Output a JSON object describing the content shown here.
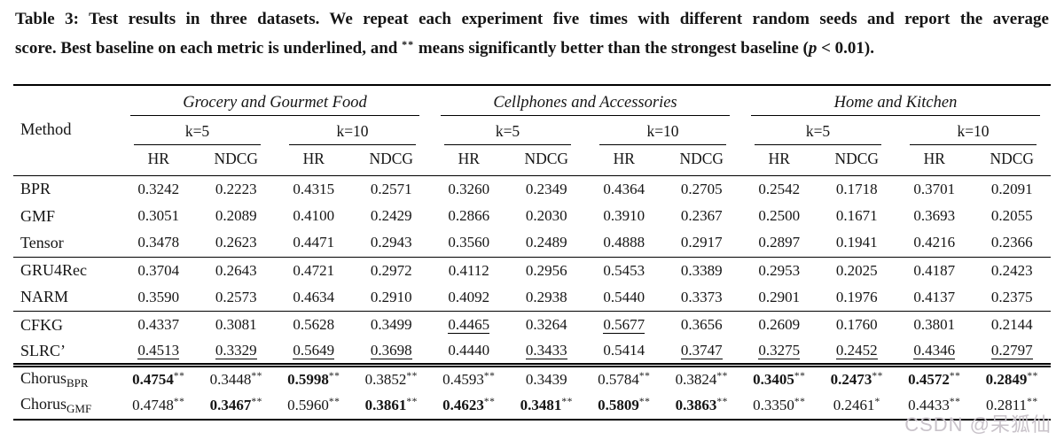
{
  "caption": {
    "line1": "Table 3: Test results in three datasets. We repeat each experiment five times with different random seeds and report the average",
    "line2_prefix": "score. Best baseline on each metric is underlined, and ",
    "stars": "**",
    "line2_mid": " means significantly better than the strongest baseline (",
    "p_var": "p",
    "line2_suffix": " < 0.01)."
  },
  "table": {
    "method_header": "Method",
    "metric_labels": [
      "HR",
      "NDCG"
    ],
    "groups": [
      {
        "name": "Grocery and Gourmet Food",
        "ks": [
          "k=5",
          "k=10"
        ]
      },
      {
        "name": "Cellphones and Accessories",
        "ks": [
          "k=5",
          "k=10"
        ]
      },
      {
        "name": "Home and Kitchen",
        "ks": [
          "k=5",
          "k=10"
        ]
      }
    ],
    "row_groups": [
      {
        "rows": [
          {
            "method": {
              "name": "BPR",
              "sub": ""
            },
            "cells": [
              {
                "v": "0.3242",
                "f": "",
                "s": ""
              },
              {
                "v": "0.2223",
                "f": "",
                "s": ""
              },
              {
                "v": "0.4315",
                "f": "",
                "s": ""
              },
              {
                "v": "0.2571",
                "f": "",
                "s": ""
              },
              {
                "v": "0.3260",
                "f": "",
                "s": ""
              },
              {
                "v": "0.2349",
                "f": "",
                "s": ""
              },
              {
                "v": "0.4364",
                "f": "",
                "s": ""
              },
              {
                "v": "0.2705",
                "f": "",
                "s": ""
              },
              {
                "v": "0.2542",
                "f": "",
                "s": ""
              },
              {
                "v": "0.1718",
                "f": "",
                "s": ""
              },
              {
                "v": "0.3701",
                "f": "",
                "s": ""
              },
              {
                "v": "0.2091",
                "f": "",
                "s": ""
              }
            ]
          },
          {
            "method": {
              "name": "GMF",
              "sub": ""
            },
            "cells": [
              {
                "v": "0.3051",
                "f": "",
                "s": ""
              },
              {
                "v": "0.2089",
                "f": "",
                "s": ""
              },
              {
                "v": "0.4100",
                "f": "",
                "s": ""
              },
              {
                "v": "0.2429",
                "f": "",
                "s": ""
              },
              {
                "v": "0.2866",
                "f": "",
                "s": ""
              },
              {
                "v": "0.2030",
                "f": "",
                "s": ""
              },
              {
                "v": "0.3910",
                "f": "",
                "s": ""
              },
              {
                "v": "0.2367",
                "f": "",
                "s": ""
              },
              {
                "v": "0.2500",
                "f": "",
                "s": ""
              },
              {
                "v": "0.1671",
                "f": "",
                "s": ""
              },
              {
                "v": "0.3693",
                "f": "",
                "s": ""
              },
              {
                "v": "0.2055",
                "f": "",
                "s": ""
              }
            ]
          },
          {
            "method": {
              "name": "Tensor",
              "sub": ""
            },
            "cells": [
              {
                "v": "0.3478",
                "f": "",
                "s": ""
              },
              {
                "v": "0.2623",
                "f": "",
                "s": ""
              },
              {
                "v": "0.4471",
                "f": "",
                "s": ""
              },
              {
                "v": "0.2943",
                "f": "",
                "s": ""
              },
              {
                "v": "0.3560",
                "f": "",
                "s": ""
              },
              {
                "v": "0.2489",
                "f": "",
                "s": ""
              },
              {
                "v": "0.4888",
                "f": "",
                "s": ""
              },
              {
                "v": "0.2917",
                "f": "",
                "s": ""
              },
              {
                "v": "0.2897",
                "f": "",
                "s": ""
              },
              {
                "v": "0.1941",
                "f": "",
                "s": ""
              },
              {
                "v": "0.4216",
                "f": "",
                "s": ""
              },
              {
                "v": "0.2366",
                "f": "",
                "s": ""
              }
            ]
          }
        ]
      },
      {
        "rows": [
          {
            "method": {
              "name": "GRU4Rec",
              "sub": ""
            },
            "cells": [
              {
                "v": "0.3704",
                "f": "",
                "s": ""
              },
              {
                "v": "0.2643",
                "f": "",
                "s": ""
              },
              {
                "v": "0.4721",
                "f": "",
                "s": ""
              },
              {
                "v": "0.2972",
                "f": "",
                "s": ""
              },
              {
                "v": "0.4112",
                "f": "",
                "s": ""
              },
              {
                "v": "0.2956",
                "f": "",
                "s": ""
              },
              {
                "v": "0.5453",
                "f": "",
                "s": ""
              },
              {
                "v": "0.3389",
                "f": "",
                "s": ""
              },
              {
                "v": "0.2953",
                "f": "",
                "s": ""
              },
              {
                "v": "0.2025",
                "f": "",
                "s": ""
              },
              {
                "v": "0.4187",
                "f": "",
                "s": ""
              },
              {
                "v": "0.2423",
                "f": "",
                "s": ""
              }
            ]
          },
          {
            "method": {
              "name": "NARM",
              "sub": ""
            },
            "cells": [
              {
                "v": "0.3590",
                "f": "",
                "s": ""
              },
              {
                "v": "0.2573",
                "f": "",
                "s": ""
              },
              {
                "v": "0.4634",
                "f": "",
                "s": ""
              },
              {
                "v": "0.2910",
                "f": "",
                "s": ""
              },
              {
                "v": "0.4092",
                "f": "",
                "s": ""
              },
              {
                "v": "0.2938",
                "f": "",
                "s": ""
              },
              {
                "v": "0.5440",
                "f": "",
                "s": ""
              },
              {
                "v": "0.3373",
                "f": "",
                "s": ""
              },
              {
                "v": "0.2901",
                "f": "",
                "s": ""
              },
              {
                "v": "0.1976",
                "f": "",
                "s": ""
              },
              {
                "v": "0.4137",
                "f": "",
                "s": ""
              },
              {
                "v": "0.2375",
                "f": "",
                "s": ""
              }
            ]
          }
        ]
      },
      {
        "rows": [
          {
            "method": {
              "name": "CFKG",
              "sub": ""
            },
            "cells": [
              {
                "v": "0.4337",
                "f": "",
                "s": ""
              },
              {
                "v": "0.3081",
                "f": "",
                "s": ""
              },
              {
                "v": "0.5628",
                "f": "",
                "s": ""
              },
              {
                "v": "0.3499",
                "f": "",
                "s": ""
              },
              {
                "v": "0.4465",
                "f": "u",
                "s": ""
              },
              {
                "v": "0.3264",
                "f": "",
                "s": ""
              },
              {
                "v": "0.5677",
                "f": "u",
                "s": ""
              },
              {
                "v": "0.3656",
                "f": "",
                "s": ""
              },
              {
                "v": "0.2609",
                "f": "",
                "s": ""
              },
              {
                "v": "0.1760",
                "f": "",
                "s": ""
              },
              {
                "v": "0.3801",
                "f": "",
                "s": ""
              },
              {
                "v": "0.2144",
                "f": "",
                "s": ""
              }
            ]
          },
          {
            "method": {
              "name": "SLRC’",
              "sub": ""
            },
            "cells": [
              {
                "v": "0.4513",
                "f": "u",
                "s": ""
              },
              {
                "v": "0.3329",
                "f": "u",
                "s": ""
              },
              {
                "v": "0.5649",
                "f": "u",
                "s": ""
              },
              {
                "v": "0.3698",
                "f": "u",
                "s": ""
              },
              {
                "v": "0.4440",
                "f": "",
                "s": ""
              },
              {
                "v": "0.3433",
                "f": "u",
                "s": ""
              },
              {
                "v": "0.5414",
                "f": "",
                "s": ""
              },
              {
                "v": "0.3747",
                "f": "u",
                "s": ""
              },
              {
                "v": "0.3275",
                "f": "u",
                "s": ""
              },
              {
                "v": "0.2452",
                "f": "u",
                "s": ""
              },
              {
                "v": "0.4346",
                "f": "u",
                "s": ""
              },
              {
                "v": "0.2797",
                "f": "u",
                "s": ""
              }
            ]
          }
        ]
      },
      {
        "rows": [
          {
            "method": {
              "name": "Chorus",
              "sub": "BPR"
            },
            "cells": [
              {
                "v": "0.4754",
                "f": "b",
                "s": "**"
              },
              {
                "v": "0.3448",
                "f": "",
                "s": "**"
              },
              {
                "v": "0.5998",
                "f": "b",
                "s": "**"
              },
              {
                "v": "0.3852",
                "f": "",
                "s": "**"
              },
              {
                "v": "0.4593",
                "f": "",
                "s": "**"
              },
              {
                "v": "0.3439",
                "f": "",
                "s": ""
              },
              {
                "v": "0.5784",
                "f": "",
                "s": "**"
              },
              {
                "v": "0.3824",
                "f": "",
                "s": "**"
              },
              {
                "v": "0.3405",
                "f": "b",
                "s": "**"
              },
              {
                "v": "0.2473",
                "f": "b",
                "s": "**"
              },
              {
                "v": "0.4572",
                "f": "b",
                "s": "**"
              },
              {
                "v": "0.2849",
                "f": "b",
                "s": "**"
              }
            ]
          },
          {
            "method": {
              "name": "Chorus",
              "sub": "GMF"
            },
            "cells": [
              {
                "v": "0.4748",
                "f": "",
                "s": "**"
              },
              {
                "v": "0.3467",
                "f": "b",
                "s": "**"
              },
              {
                "v": "0.5960",
                "f": "",
                "s": "**"
              },
              {
                "v": "0.3861",
                "f": "b",
                "s": "**"
              },
              {
                "v": "0.4623",
                "f": "b",
                "s": "**"
              },
              {
                "v": "0.3481",
                "f": "b",
                "s": "**"
              },
              {
                "v": "0.5809",
                "f": "b",
                "s": "**"
              },
              {
                "v": "0.3863",
                "f": "b",
                "s": "**"
              },
              {
                "v": "0.3350",
                "f": "",
                "s": "**"
              },
              {
                "v": "0.2461",
                "f": "",
                "s": "*"
              },
              {
                "v": "0.4433",
                "f": "",
                "s": "**"
              },
              {
                "v": "0.2811",
                "f": "",
                "s": "**"
              }
            ]
          }
        ]
      }
    ]
  },
  "watermark": {
    "text": "CSDN @呆狐仙",
    "color": "#c9c3ca"
  }
}
